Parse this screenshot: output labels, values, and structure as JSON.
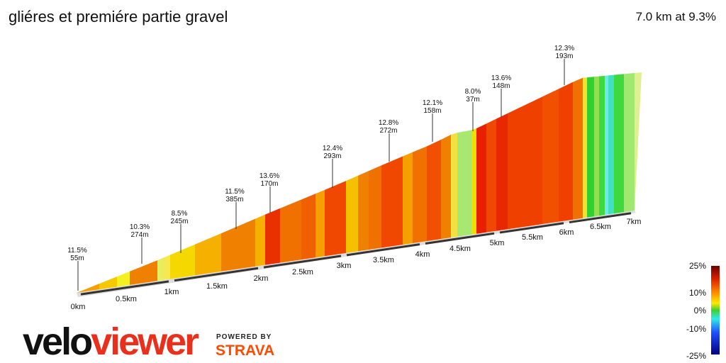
{
  "title": "gliéres et premiére partie gravel",
  "summary": "7.0 km at 9.3%",
  "annotations": [
    {
      "grade": "11.5%",
      "length": "55m"
    },
    {
      "grade": "10.3%",
      "length": "274m"
    },
    {
      "grade": "8.5%",
      "length": "245m"
    },
    {
      "grade": "11.5%",
      "length": "385m"
    },
    {
      "grade": "13.6%",
      "length": "170m"
    },
    {
      "grade": "12.4%",
      "length": "293m"
    },
    {
      "grade": "12.8%",
      "length": "272m"
    },
    {
      "grade": "12.1%",
      "length": "158m"
    },
    {
      "grade": "8.0%",
      "length": "37m"
    },
    {
      "grade": "13.6%",
      "length": "148m"
    },
    {
      "grade": "12.3%",
      "length": "193m"
    }
  ],
  "distance_labels": [
    "0km",
    "0.5km",
    "1km",
    "1.5km",
    "2km",
    "2.5km",
    "3km",
    "3.5km",
    "4km",
    "4.5km",
    "5km",
    "5.5km",
    "6km",
    "6.5km",
    "7km"
  ],
  "scale_labels": [
    "25%",
    "10%",
    "0%",
    "-10%",
    "-25%"
  ],
  "brand": {
    "velo": "velo",
    "viewer": "viewer",
    "powered": "POWERED BY",
    "strava": "STRAVA"
  }
}
